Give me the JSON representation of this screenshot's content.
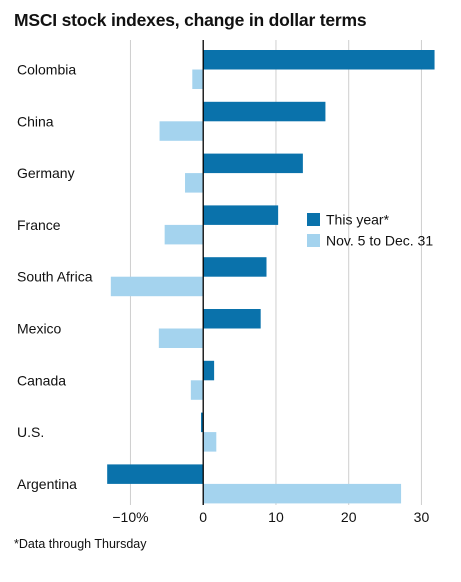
{
  "title": "MSCI stock indexes, change in dollar terms",
  "footnote": "*Data through Thursday",
  "chart_data": {
    "type": "bar",
    "orientation": "horizontal",
    "categories": [
      "Colombia",
      "China",
      "Germany",
      "France",
      "South Africa",
      "Mexico",
      "Canada",
      "U.S.",
      "Argentina"
    ],
    "series": [
      {
        "name": "This year*",
        "color": "#0a72ab",
        "values": [
          31.8,
          16.8,
          13.7,
          10.3,
          8.7,
          7.9,
          1.5,
          -0.3,
          -13.2
        ]
      },
      {
        "name": "Nov. 5 to Dec. 31",
        "color": "#a4d3ee",
        "values": [
          -1.5,
          -6.0,
          -2.5,
          -5.3,
          -12.7,
          -6.1,
          -1.7,
          1.8,
          27.2
        ]
      }
    ],
    "xlim": [
      -13.5,
      32
    ],
    "xticks": [
      -10,
      0,
      10,
      20,
      30
    ],
    "xtick_labels": [
      "−10%",
      "0",
      "10",
      "20",
      "30"
    ],
    "grid": true,
    "legend": "center-right"
  }
}
